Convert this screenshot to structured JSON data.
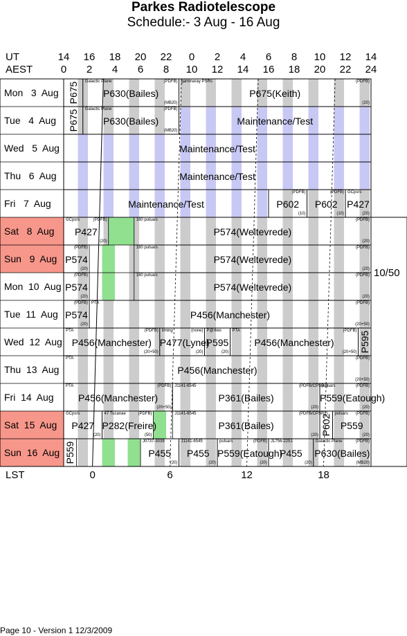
{
  "header": {
    "title": "Parkes Radiotelescope",
    "subtitle": "Schedule:- 3  Aug - 16 Aug",
    "ut_label": "UT",
    "aest_label": "AEST",
    "ut_hours": [
      "14",
      "16",
      "18",
      "20",
      "22",
      "0",
      "2",
      "4",
      "6",
      "8",
      "10",
      "12",
      "14"
    ],
    "aest_hours": [
      "0",
      "2",
      "4",
      "6",
      "8",
      "10",
      "12",
      "14",
      "16",
      "18",
      "20",
      "22",
      "24"
    ]
  },
  "rows": [
    {
      "day": "Mon",
      "date": "3",
      "month": "Aug",
      "weekend": false
    },
    {
      "day": "Tue",
      "date": "4",
      "month": "Aug",
      "weekend": false
    },
    {
      "day": "Wed",
      "date": "5",
      "month": "Aug",
      "weekend": false
    },
    {
      "day": "Thu",
      "date": "6",
      "month": "Aug",
      "weekend": false
    },
    {
      "day": "Fri",
      "date": "7",
      "month": "Aug",
      "weekend": false
    },
    {
      "day": "Sat",
      "date": "8",
      "month": "Aug",
      "weekend": true
    },
    {
      "day": "Sun",
      "date": "9",
      "month": "Aug",
      "weekend": true
    },
    {
      "day": "Mon",
      "date": "10",
      "month": "Aug",
      "weekend": false
    },
    {
      "day": "Tue",
      "date": "11",
      "month": "Aug",
      "weekend": false
    },
    {
      "day": "Wed",
      "date": "12",
      "month": "Aug",
      "weekend": false
    },
    {
      "day": "Thu",
      "date": "13",
      "month": "Aug",
      "weekend": false
    },
    {
      "day": "Fri",
      "date": "14",
      "month": "Aug",
      "weekend": false
    },
    {
      "day": "Sat",
      "date": "15",
      "month": "Aug",
      "weekend": true
    },
    {
      "day": "Sun",
      "date": "16",
      "month": "Aug",
      "weekend": true
    }
  ],
  "bookings": [
    {
      "row": 0,
      "start": 0,
      "end": 1.5,
      "label": "P675",
      "vertical": true
    },
    {
      "row": 0,
      "start": 1.5,
      "end": 9,
      "label": "P630(Bailes)",
      "top": "Galactic Plane",
      "topright": "(PDFB)",
      "botright": "(MB20)"
    },
    {
      "row": 0,
      "start": 9,
      "end": 24,
      "label": "P675(Keith)",
      "top": "gammaray PSRs",
      "topright": "(PDFB)",
      "botright": "(20)"
    },
    {
      "row": 1,
      "start": 0,
      "end": 1.5,
      "label": "P675",
      "vertical": true
    },
    {
      "row": 1,
      "start": 1.5,
      "end": 9,
      "label": "P630(Bailes)",
      "top": "Galactic Plane",
      "topright": "(PDFB)",
      "botright": "(MB20)"
    },
    {
      "row": 1,
      "start": 9,
      "end": 24,
      "label": "Maintenance/Test"
    },
    {
      "row": 2,
      "start": 0,
      "end": 24,
      "label": "Maintenance/Test"
    },
    {
      "row": 3,
      "start": 0,
      "end": 24,
      "label": "Maintenance/Test"
    },
    {
      "row": 4,
      "start": 0,
      "end": 16,
      "label": "Maintenance/Test"
    },
    {
      "row": 4,
      "start": 16,
      "end": 19,
      "label": "P602",
      "topright": "(PDFB)",
      "botright": "(10)"
    },
    {
      "row": 4,
      "start": 19,
      "end": 22,
      "label": "P602",
      "topright": "(PDFB)",
      "botright": "(10)"
    },
    {
      "row": 4,
      "start": 22,
      "end": 24,
      "label": "P427",
      "top": "GCpsrs",
      "botright": "(20)"
    },
    {
      "row": 5,
      "start": 0,
      "end": 3.5,
      "label": "P427",
      "top": "GCpsrs",
      "topright": "(PDFB)",
      "botright": "(20)"
    },
    {
      "row": 5,
      "start": 5.5,
      "end": 24,
      "label": "P574(Weltevrede)",
      "top": "160 pulsars",
      "topright": "(PDFB)",
      "botright": "(20)"
    },
    {
      "row": 6,
      "start": 0,
      "end": 2,
      "label": "P574",
      "topright": "(PDFB)",
      "botright": "(20)"
    },
    {
      "row": 6,
      "start": 5.5,
      "end": 24,
      "label": "P574(Weltevrede)",
      "top": "160 pulsars",
      "topright": "(PDFB)",
      "botright": "(20)"
    },
    {
      "row": 7,
      "start": 0,
      "end": 2,
      "label": "P574",
      "topright": "(PDFB)",
      "botright": "(20)"
    },
    {
      "row": 7,
      "start": 5.5,
      "end": 24,
      "label": "P574(Weltevrede)",
      "top": "160 pulsars",
      "topright": "(PDFB)",
      "botright": "(20)"
    },
    {
      "row": 8,
      "start": 0,
      "end": 2,
      "label": "P574",
      "topright": "(PDFB)",
      "botright": "(20)"
    },
    {
      "row": 8,
      "start": 2,
      "end": 24,
      "label": "P456(Manchester)",
      "top": "PTA",
      "topright": "(PDFB)",
      "botright": "(20+50)"
    },
    {
      "row": 9,
      "start": 0,
      "end": 7.5,
      "label": "P456(Manchester)",
      "top": "PTA",
      "topright": "(PDFB)",
      "botright": "(20+50)"
    },
    {
      "row": 9,
      "start": 7.5,
      "end": 11,
      "label": "P477(Lyne)",
      "top": "timing",
      "topright": "(none)",
      "botright": "(20)"
    },
    {
      "row": 9,
      "start": 11,
      "end": 13,
      "label": "P595",
      "top": "P@rkes",
      "botright": "(20)"
    },
    {
      "row": 9,
      "start": 13,
      "end": 23,
      "label": "P456(Manchester)",
      "top": "PTA",
      "topright": "(PDFB)",
      "botright": "(20+50)"
    },
    {
      "row": 9,
      "start": 23,
      "end": 24,
      "label": "P595",
      "vertical": true
    },
    {
      "row": 10,
      "start": 0,
      "end": 24,
      "label": "P456(Manchester)",
      "top": "PTA",
      "topright": "(PDFB)",
      "botright": "(20+50)"
    },
    {
      "row": 11,
      "start": 0,
      "end": 8.5,
      "label": "P456(Manchester)",
      "top": "PTA",
      "topright": "(PDFB)",
      "botright": "(20+50)"
    },
    {
      "row": 11,
      "start": 8.5,
      "end": 20,
      "label": "P361(Bailes)",
      "top": "J1141-6545",
      "topright": "(PDFB/CPSR2)",
      "botright": "(20)"
    },
    {
      "row": 11,
      "start": 20,
      "end": 24,
      "label": "P559(Eatough)",
      "top": "pulsars",
      "topright": "(PDFB)",
      "botright": "(20)"
    },
    {
      "row": 12,
      "start": 0,
      "end": 3,
      "label": "P427",
      "top": "GCpsrs",
      "botright": "(20)"
    },
    {
      "row": 12,
      "start": 3,
      "end": 7,
      "label": "P282(Freire)",
      "top": "47 Tucanae",
      "topright": "(PDFB)",
      "botright": "(50)"
    },
    {
      "row": 12,
      "start": 8.5,
      "end": 20,
      "label": "P361(Bailes)",
      "top": "J1141-6545",
      "topright": "(PDFB/CPSR2)",
      "botright": "(20)"
    },
    {
      "row": 12,
      "start": 20,
      "end": 21,
      "label": "P602",
      "vertical": true
    },
    {
      "row": 12,
      "start": 21,
      "end": 24,
      "label": "P559",
      "top": "pulsars",
      "topright": "(PDFB)",
      "botright": "(20)"
    },
    {
      "row": 13,
      "start": 0,
      "end": 1,
      "label": "P559",
      "vertical": true
    },
    {
      "row": 13,
      "start": 6,
      "end": 9,
      "label": "P455",
      "top": "J0737-3039",
      "botright": "(20)"
    },
    {
      "row": 13,
      "start": 9,
      "end": 12,
      "label": "P455",
      "top": "J1141-6545",
      "botright": "(20)"
    },
    {
      "row": 13,
      "start": 12,
      "end": 16,
      "label": "P559(Eatough)",
      "top": "pulsars",
      "topright": "(PDFB)",
      "botright": "(20)"
    },
    {
      "row": 13,
      "start": 16,
      "end": 19.5,
      "label": "P455",
      "top": "J1756-2251",
      "botright": "(20)"
    },
    {
      "row": 13,
      "start": 19.5,
      "end": 24,
      "label": "P630(Bailes)",
      "top": "Galactic Plane",
      "topright": "(PDFB)",
      "botright": "(MB20)"
    }
  ],
  "green_slots": [
    {
      "row": 5,
      "start": 3.5,
      "end": 5.5
    },
    {
      "row": 6,
      "start": 3,
      "end": 4
    },
    {
      "row": 7,
      "start": 3,
      "end": 4
    },
    {
      "row": 12,
      "start": 7,
      "end": 8
    },
    {
      "row": 13,
      "start": 3,
      "end": 4
    },
    {
      "row": 13,
      "start": 5,
      "end": 6
    }
  ],
  "side_note": "10/50",
  "lst": {
    "label": "LST",
    "ticks": [
      "0",
      "6",
      "12",
      "18"
    ]
  },
  "footer": "Page 10 - Version 1  12/3/2009",
  "colors": {
    "weekend": "#f7968a",
    "maintenance": "#c8c8f4",
    "gray": "#cccccc",
    "green": "#90e090"
  }
}
